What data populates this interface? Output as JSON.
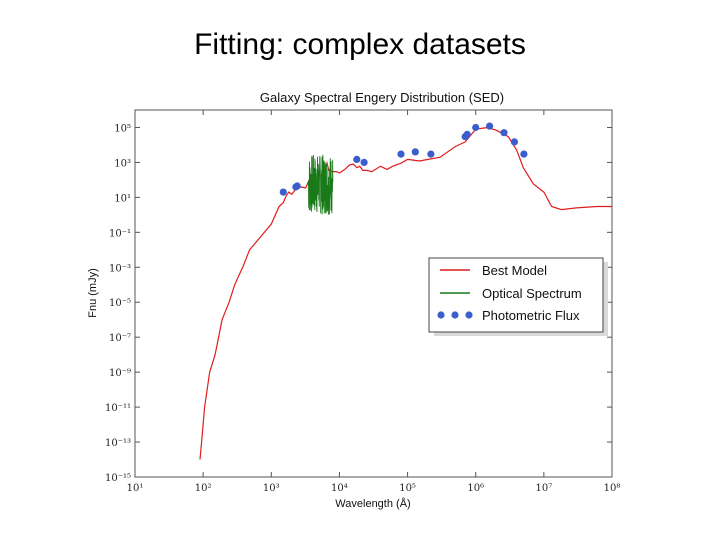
{
  "slide": {
    "title": "Fitting: complex datasets"
  },
  "chart_data": {
    "type": "line",
    "title": "Galaxy Spectral Engery Distribution (SED)",
    "xlabel": "Wavelength (Å)",
    "ylabel": "Fnu (mJy)",
    "x_scale": "log",
    "y_scale": "log",
    "xlim": [
      10,
      100000000
    ],
    "ylim": [
      1e-15,
      1000000.0
    ],
    "x_ticks": [
      {
        "value": 10,
        "label": "10¹"
      },
      {
        "value": 100,
        "label": "10²"
      },
      {
        "value": 1000,
        "label": "10³"
      },
      {
        "value": 10000,
        "label": "10⁴"
      },
      {
        "value": 100000,
        "label": "10⁵"
      },
      {
        "value": 1000000,
        "label": "10⁶"
      },
      {
        "value": 10000000,
        "label": "10⁷"
      },
      {
        "value": 100000000,
        "label": "10⁸"
      }
    ],
    "y_ticks": [
      {
        "value": 100000.0,
        "label": "10⁵"
      },
      {
        "value": 1000.0,
        "label": "10³"
      },
      {
        "value": 10.0,
        "label": "10¹"
      },
      {
        "value": 0.1,
        "label": "10⁻¹"
      },
      {
        "value": 0.001,
        "label": "10⁻³"
      },
      {
        "value": 1e-05,
        "label": "10⁻⁵"
      },
      {
        "value": 1e-07,
        "label": "10⁻⁷"
      },
      {
        "value": 1e-09,
        "label": "10⁻⁹"
      },
      {
        "value": 1e-11,
        "label": "10⁻¹¹"
      },
      {
        "value": 1e-13,
        "label": "10⁻¹³"
      },
      {
        "value": 1e-15,
        "label": "10⁻¹⁵"
      }
    ],
    "grid": false,
    "legend_position": "right",
    "series": [
      {
        "name": "Best Model",
        "kind": "line",
        "color": "#e01c1c",
        "x": [
          90,
          95,
          105,
          125,
          150,
          190,
          240,
          290,
          330,
          380,
          480,
          680,
          1000,
          1300,
          1500,
          1650,
          1800,
          2000,
          2300,
          2700,
          3200,
          3600,
          3800,
          4100,
          4500,
          5000,
          5500,
          6000,
          6563,
          7000,
          8000,
          9000,
          10000,
          12000,
          14000,
          16000,
          18000,
          20000,
          22000,
          25000,
          30000,
          40000,
          50000,
          60000,
          80000,
          100000,
          150000,
          200000,
          300000,
          500000,
          700000,
          1000000,
          1500000,
          2000000,
          3000000,
          4000000,
          5000000,
          7000000,
          10000000,
          13000000,
          18000000,
          30000000,
          60000000,
          100000000
        ],
        "y": [
          1e-14,
          1e-13,
          1e-11,
          1e-09,
          1e-08,
          1e-06,
          1e-05,
          0.0001,
          0.0003,
          0.001,
          0.01,
          0.05,
          0.3,
          3,
          5,
          12,
          20,
          15,
          30,
          40,
          35,
          100,
          150,
          60,
          120,
          140,
          200,
          250,
          900,
          350,
          300,
          300,
          250,
          400,
          700,
          800,
          500,
          600,
          350,
          350,
          300,
          600,
          400,
          600,
          900,
          1500,
          1200,
          1500,
          2000,
          8000,
          15000,
          80000,
          100000,
          70000,
          30000,
          5000,
          500,
          60,
          20,
          3,
          2,
          2.5,
          3,
          3
        ]
      },
      {
        "name": "Optical Spectrum",
        "kind": "noisy_line",
        "color": "#1a7a1a",
        "x_range": [
          3500,
          8000
        ],
        "y_min": 1,
        "y_max": 3000
      },
      {
        "name": "Photometric Flux",
        "kind": "scatter",
        "color": "#3a5fcd",
        "x": [
          1500,
          2300,
          2400,
          18000,
          23000,
          80000,
          130000,
          220000,
          700000,
          750000,
          1000000,
          1600000,
          2600000,
          3700000,
          5100000
        ],
        "y": [
          20,
          40,
          45,
          1500,
          1000,
          3000,
          4000,
          3000,
          30000,
          40000,
          100000,
          120000,
          50000,
          15000,
          3000
        ]
      }
    ]
  }
}
